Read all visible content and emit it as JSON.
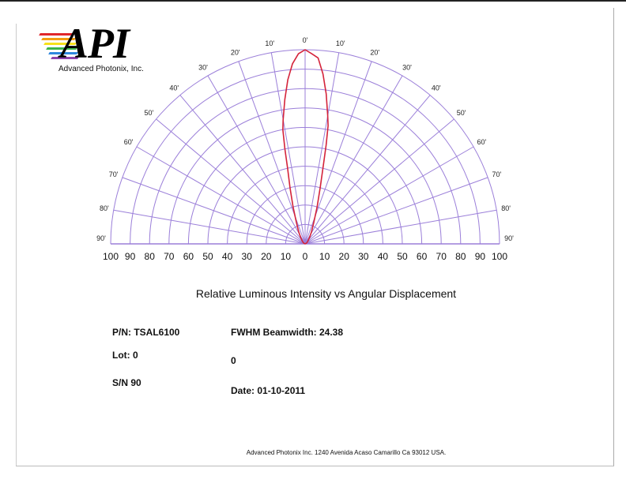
{
  "logo": {
    "mark": "API",
    "subtitle": "Advanced Photonix, Inc.",
    "stripe_colors": [
      "#e0262b",
      "#f39c12",
      "#f7e11a",
      "#3cb44b",
      "#2e86de",
      "#8e44ad"
    ]
  },
  "chart_data": {
    "type": "polar",
    "subtype": "half-polar radiation pattern",
    "title": "Relative Luminous Intensity vs Angular Displacement",
    "angle_range_deg": [
      -90,
      90
    ],
    "angle_step_deg": 10,
    "angle_labels": [
      "90'",
      "80'",
      "70'",
      "60'",
      "50'",
      "40'",
      "30'",
      "20'",
      "10'",
      "0'",
      "10'",
      "20'",
      "30'",
      "40'",
      "50'",
      "60'",
      "70'",
      "80'",
      "90'"
    ],
    "radial_range": [
      0,
      100
    ],
    "radial_step": 10,
    "radial_labels": [
      "100",
      "90",
      "80",
      "70",
      "60",
      "50",
      "40",
      "30",
      "20",
      "10",
      "0",
      "10",
      "20",
      "30",
      "40",
      "50",
      "60",
      "70",
      "80",
      "90",
      "100"
    ],
    "grid": true,
    "grid_color": "#9b7fd9",
    "series": [
      {
        "color": "#d4233a",
        "points": [
          {
            "angle": -90,
            "r": 0
          },
          {
            "angle": -60,
            "r": 1
          },
          {
            "angle": -45,
            "r": 2
          },
          {
            "angle": -35,
            "r": 4
          },
          {
            "angle": -28,
            "r": 7
          },
          {
            "angle": -22,
            "r": 12
          },
          {
            "angle": -18,
            "r": 20
          },
          {
            "angle": -15,
            "r": 30
          },
          {
            "angle": -13,
            "r": 40
          },
          {
            "angle": -12,
            "r": 50
          },
          {
            "angle": -11,
            "r": 60
          },
          {
            "angle": -10,
            "r": 65
          },
          {
            "angle": -8,
            "r": 75
          },
          {
            "angle": -6,
            "r": 85
          },
          {
            "angle": -4,
            "r": 93
          },
          {
            "angle": -2,
            "r": 98
          },
          {
            "angle": 0,
            "r": 100
          },
          {
            "angle": 2,
            "r": 98
          },
          {
            "angle": 4,
            "r": 96
          },
          {
            "angle": 6,
            "r": 88
          },
          {
            "angle": 8,
            "r": 78
          },
          {
            "angle": 10,
            "r": 67
          },
          {
            "angle": 11,
            "r": 62
          },
          {
            "angle": 12,
            "r": 52
          },
          {
            "angle": 13,
            "r": 42
          },
          {
            "angle": 15,
            "r": 30
          },
          {
            "angle": 18,
            "r": 20
          },
          {
            "angle": 22,
            "r": 12
          },
          {
            "angle": 28,
            "r": 7
          },
          {
            "angle": 35,
            "r": 4
          },
          {
            "angle": 45,
            "r": 2
          },
          {
            "angle": 60,
            "r": 1
          },
          {
            "angle": 90,
            "r": 0
          }
        ]
      }
    ]
  },
  "info": {
    "pn": "P/N: TSAL6100",
    "lot": "Lot: 0",
    "sn": "S/N 90",
    "fwhm": "FWHM Beamwidth:  24.38",
    "value": "0",
    "date": "Date: 01-10-2011"
  },
  "footer": "Advanced Photonix Inc. 1240 Avenida Acaso Camarillo Ca 93012 USA."
}
